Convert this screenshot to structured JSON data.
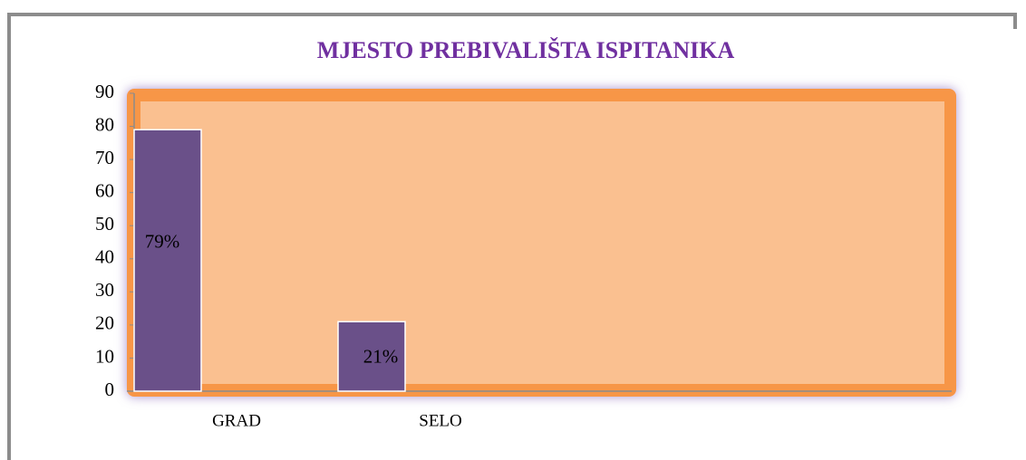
{
  "chart_data": {
    "type": "bar",
    "title": "MJESTO PREBIVALIŠTA  ISPITANIKA",
    "categories": [
      "GRAD",
      "SELO"
    ],
    "values": [
      79,
      21
    ],
    "value_labels": [
      "79%",
      "21%"
    ],
    "color": "#6a5089",
    "ylim": [
      0,
      90
    ],
    "yticks": [
      0,
      10,
      20,
      30,
      40,
      50,
      60,
      70,
      80,
      90
    ]
  }
}
